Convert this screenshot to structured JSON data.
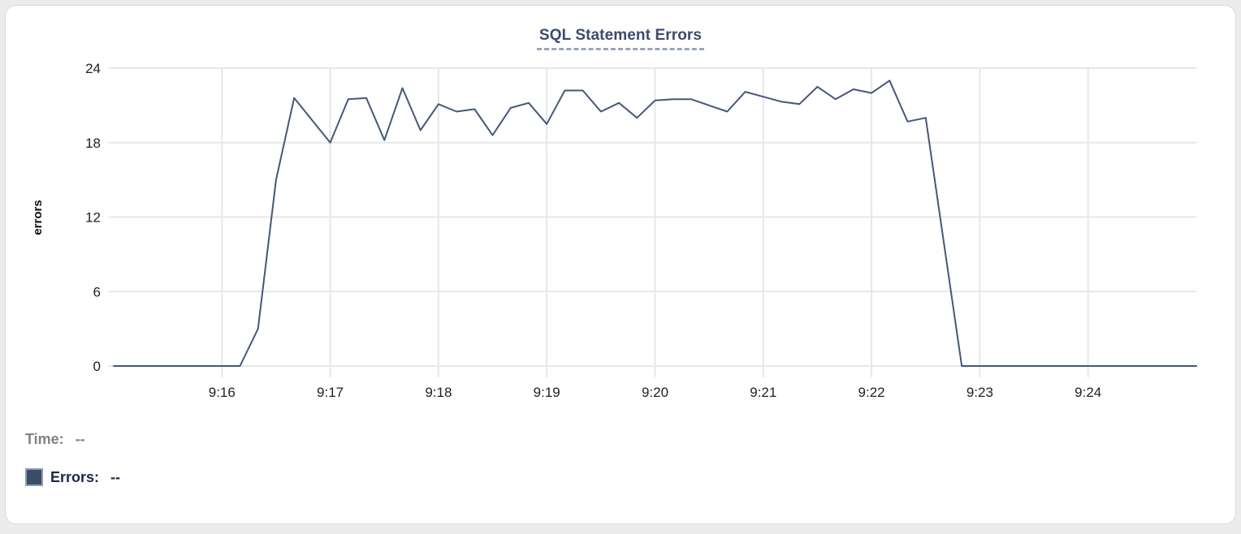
{
  "chart_data": {
    "type": "line",
    "title": "SQL Statement Errors",
    "ylabel": "errors",
    "ylim": [
      0,
      24
    ],
    "y_ticks": [
      0,
      6,
      12,
      18,
      24
    ],
    "xlim_seconds": [
      0,
      600
    ],
    "x_start_time": "9:15",
    "x_ticks": [
      {
        "label": "9:16",
        "s": 60
      },
      {
        "label": "9:17",
        "s": 120
      },
      {
        "label": "9:18",
        "s": 180
      },
      {
        "label": "9:19",
        "s": 240
      },
      {
        "label": "9:20",
        "s": 300
      },
      {
        "label": "9:21",
        "s": 360
      },
      {
        "label": "9:22",
        "s": 420
      },
      {
        "label": "9:23",
        "s": 480
      },
      {
        "label": "9:24",
        "s": 540
      }
    ],
    "grid": true,
    "legend_position": "bottom-left",
    "series": [
      {
        "name": "Errors",
        "color": "#46577b",
        "x_seconds": [
          0,
          10,
          20,
          30,
          40,
          50,
          60,
          70,
          80,
          90,
          100,
          110,
          120,
          130,
          140,
          150,
          160,
          170,
          180,
          190,
          200,
          210,
          220,
          230,
          240,
          250,
          260,
          270,
          280,
          290,
          300,
          310,
          320,
          330,
          340,
          350,
          360,
          370,
          380,
          390,
          400,
          410,
          420,
          430,
          440,
          450,
          460,
          470,
          480,
          490,
          500,
          510,
          520,
          530,
          540,
          550,
          560,
          570,
          580,
          590,
          600
        ],
        "values": [
          0,
          0,
          0,
          0,
          0,
          0,
          0,
          0,
          3,
          15,
          21.6,
          19.8,
          18,
          21.5,
          21.6,
          18.2,
          22.4,
          19,
          21.1,
          20.5,
          20.7,
          18.6,
          20.8,
          21.2,
          19.5,
          22.2,
          22.2,
          20.5,
          21.2,
          20,
          21.4,
          21.5,
          21.5,
          21,
          20.5,
          22.1,
          21.7,
          21.3,
          21.1,
          22.5,
          21.5,
          22.3,
          22,
          23,
          19.7,
          20,
          10,
          0,
          0,
          0,
          0,
          0,
          0,
          0,
          0,
          0,
          0,
          0,
          0,
          0,
          0
        ]
      }
    ]
  },
  "tooltip": {
    "time_label": "Time:",
    "time_value": "--",
    "errors_label": "Errors:",
    "errors_value": "--"
  },
  "colors": {
    "line": "#46577b",
    "legend_swatch": "#3d4c66",
    "errors_text": "#1b2848",
    "time_text": "#7f8287",
    "title": "#3c4b6e",
    "grid": "#e7e7e7"
  },
  "icons": {
    "errors_series_swatch": "filled-square"
  }
}
